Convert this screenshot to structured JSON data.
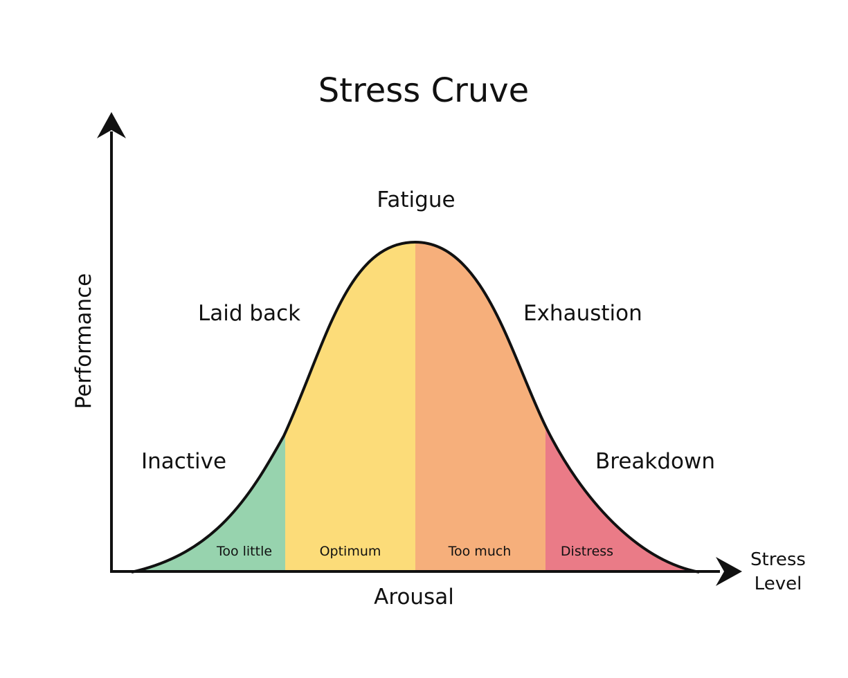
{
  "title": "Stress Cruve",
  "y_axis_label": "Performance",
  "x_axis_label": "Arousal",
  "x_axis_end_label": {
    "line1": "Stress",
    "line2": "Level"
  },
  "curve_labels": {
    "inactive": "Inactive",
    "laid_back": "Laid back",
    "fatigue": "Fatigue",
    "exhaustion": "Exhaustion",
    "breakdown": "Breakdown"
  },
  "zones": [
    {
      "label": "Too little",
      "color": "#97d3ae"
    },
    {
      "label": "Optimum",
      "color": "#fcdc79"
    },
    {
      "label": "Too much",
      "color": "#f6af7b"
    },
    {
      "label": "Distress",
      "color": "#ea7b87"
    }
  ],
  "colors": {
    "curve": "#111111",
    "axes": "#111111",
    "text": "#111111"
  }
}
